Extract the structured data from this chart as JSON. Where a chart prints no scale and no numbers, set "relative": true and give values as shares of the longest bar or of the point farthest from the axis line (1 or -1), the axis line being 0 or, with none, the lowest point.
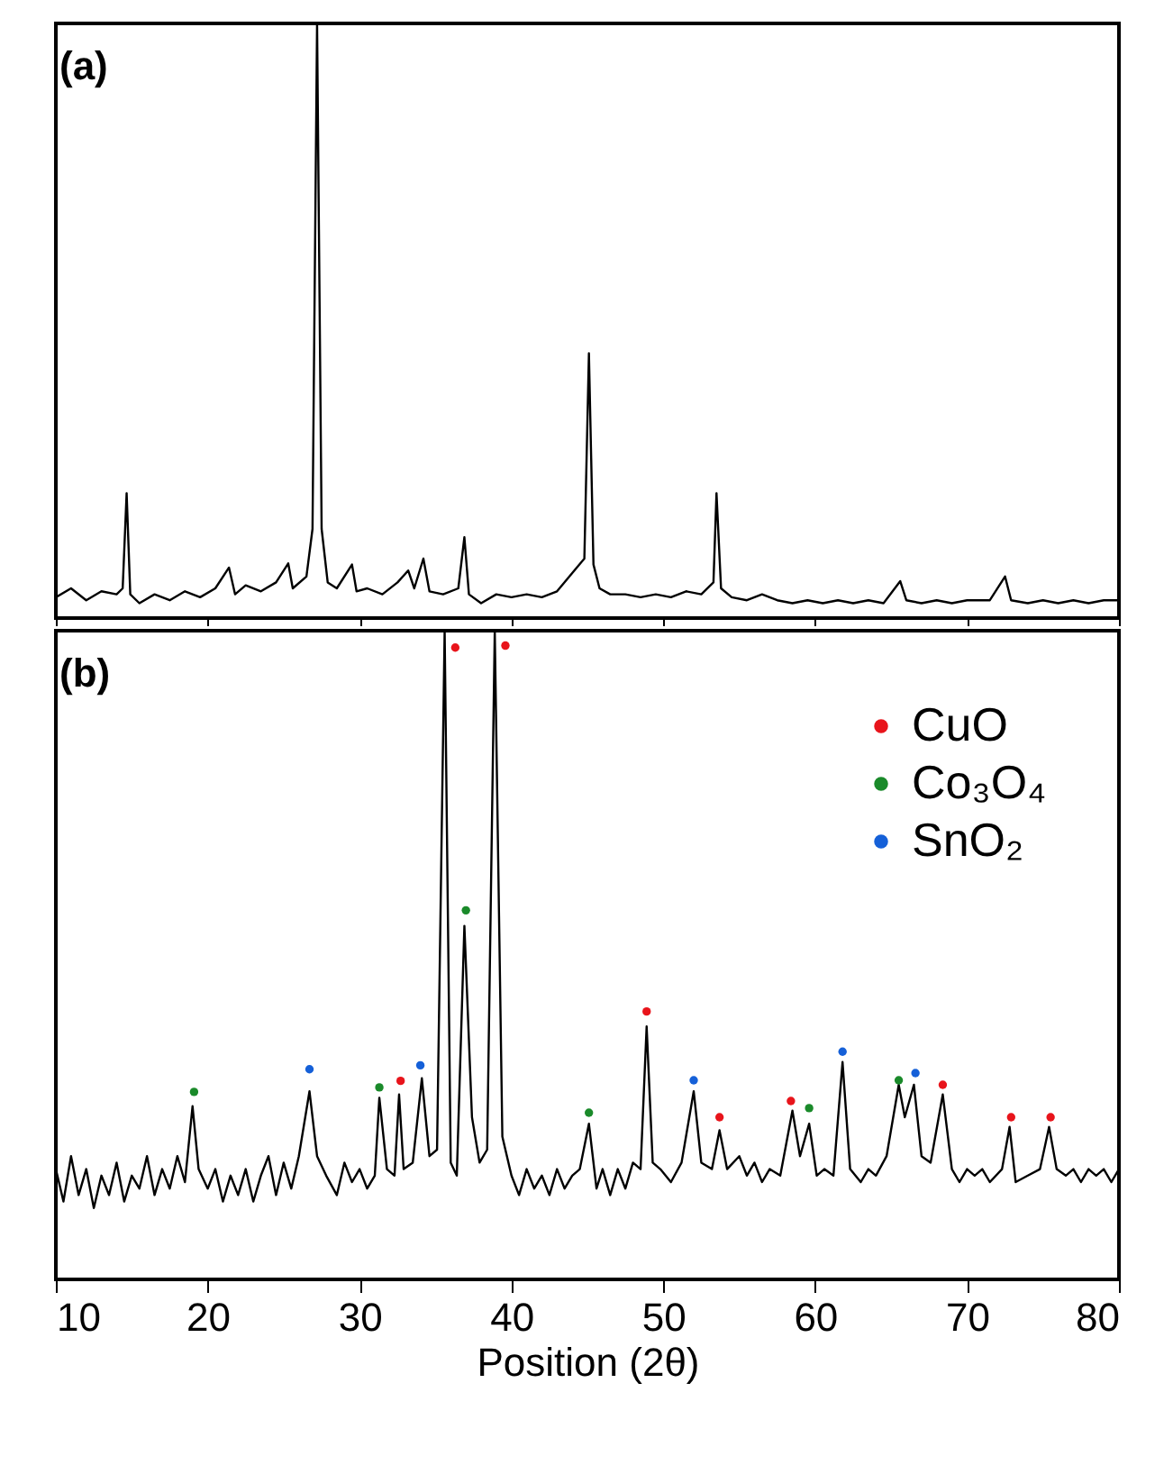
{
  "chart_data": [
    {
      "type": "line",
      "relative": true,
      "annotations": [
        "(a)"
      ],
      "xlim": [
        10,
        80
      ],
      "xticks": [
        10,
        20,
        30,
        40,
        50,
        60,
        70,
        80
      ],
      "tick_labels": false,
      "line_style": "solid",
      "series": [
        {
          "color": "#000000",
          "x": [
            10,
            11,
            12,
            13,
            14,
            14.4,
            14.66,
            14.9,
            15.5,
            16.5,
            17.5,
            18.5,
            19.5,
            20.5,
            21.4,
            21.8,
            22.5,
            23.5,
            24.5,
            25.3,
            25.6,
            26.5,
            26.9,
            27.2,
            27.5,
            27.9,
            28.5,
            29.5,
            29.8,
            30.5,
            31.5,
            32.5,
            33.2,
            33.6,
            34.2,
            34.6,
            35.5,
            36.5,
            36.9,
            37.2,
            38,
            39,
            40,
            41,
            42,
            43,
            44.3,
            44.8,
            45.1,
            45.4,
            45.8,
            46.5,
            47.5,
            48.5,
            49.5,
            50.5,
            51.5,
            52.5,
            53.3,
            53.5,
            53.8,
            54.5,
            55.5,
            56.5,
            57.5,
            58.5,
            59.5,
            60.5,
            61.5,
            62.5,
            63.5,
            64.5,
            65.6,
            66,
            67,
            68,
            69,
            70,
            71.5,
            72.5,
            72.9,
            74,
            75,
            76,
            77,
            78,
            79,
            80
          ],
          "values": [
            0.035,
            0.05,
            0.03,
            0.045,
            0.04,
            0.05,
            0.21,
            0.04,
            0.025,
            0.04,
            0.03,
            0.045,
            0.035,
            0.05,
            0.085,
            0.04,
            0.055,
            0.045,
            0.06,
            0.092,
            0.05,
            0.07,
            0.15,
            1,
            0.15,
            0.06,
            0.05,
            0.09,
            0.045,
            0.05,
            0.04,
            0.06,
            0.08,
            0.05,
            0.1,
            0.045,
            0.04,
            0.05,
            0.136,
            0.04,
            0.025,
            0.04,
            0.035,
            0.04,
            0.035,
            0.045,
            0.085,
            0.1,
            0.445,
            0.09,
            0.05,
            0.04,
            0.04,
            0.035,
            0.04,
            0.035,
            0.045,
            0.04,
            0.06,
            0.21,
            0.05,
            0.035,
            0.03,
            0.04,
            0.03,
            0.025,
            0.03,
            0.025,
            0.03,
            0.025,
            0.03,
            0.025,
            0.062,
            0.03,
            0.025,
            0.03,
            0.025,
            0.03,
            0.03,
            0.07,
            0.03,
            0.025,
            0.03,
            0.025,
            0.03,
            0.025,
            0.03,
            0.03
          ]
        }
      ]
    },
    {
      "type": "line",
      "relative": true,
      "annotations": [
        "(b)"
      ],
      "xlabel": "Position (2θ)",
      "xlim": [
        10,
        80
      ],
      "xticks": [
        10,
        20,
        30,
        40,
        50,
        60,
        70,
        80
      ],
      "tick_labels": "x",
      "line_style": "solid",
      "legend": "top right",
      "series": [
        {
          "color": "#000000",
          "x": [
            10,
            10.5,
            11,
            11.5,
            12,
            12.5,
            13,
            13.5,
            14,
            14.5,
            15,
            15.5,
            16,
            16.5,
            17,
            17.5,
            18,
            18.5,
            19,
            19.4,
            20,
            20.5,
            21,
            21.5,
            22,
            22.5,
            23,
            23.5,
            24,
            24.5,
            25,
            25.5,
            26,
            26.7,
            27.2,
            27.8,
            28.5,
            29,
            29.5,
            30,
            30.5,
            31,
            31.3,
            31.8,
            32.3,
            32.6,
            32.9,
            33.5,
            34.1,
            34.6,
            35.1,
            35.6,
            36.0,
            36.4,
            36.9,
            37.4,
            37.9,
            38.4,
            38.9,
            39.4,
            40,
            40.5,
            41,
            41.5,
            42,
            42.5,
            43,
            43.5,
            44,
            44.5,
            45.1,
            45.6,
            46,
            46.5,
            47,
            47.5,
            48,
            48.5,
            48.9,
            49.3,
            49.8,
            50.5,
            51.2,
            52.0,
            52.5,
            53.2,
            53.7,
            54.2,
            55,
            55.5,
            56,
            56.5,
            57,
            57.7,
            58.5,
            59.0,
            59.6,
            60.1,
            60.6,
            61.2,
            61.8,
            62.3,
            63,
            63.5,
            64,
            64.7,
            65.5,
            65.9,
            66.5,
            67.0,
            67.6,
            68.4,
            69,
            69.5,
            70,
            70.5,
            71,
            71.5,
            72.3,
            72.8,
            73.2,
            74,
            74.8,
            75.4,
            75.9,
            76.5,
            77,
            77.5,
            78,
            78.5,
            79,
            79.5,
            80
          ],
          "values": [
            0.17,
            0.12,
            0.19,
            0.13,
            0.17,
            0.11,
            0.16,
            0.13,
            0.18,
            0.12,
            0.16,
            0.14,
            0.19,
            0.13,
            0.17,
            0.14,
            0.19,
            0.15,
            0.267,
            0.17,
            0.14,
            0.17,
            0.12,
            0.16,
            0.13,
            0.17,
            0.12,
            0.16,
            0.19,
            0.13,
            0.18,
            0.14,
            0.19,
            0.29,
            0.19,
            0.16,
            0.13,
            0.18,
            0.15,
            0.17,
            0.14,
            0.16,
            0.28,
            0.17,
            0.16,
            0.285,
            0.17,
            0.18,
            0.31,
            0.19,
            0.2,
            1,
            0.18,
            0.16,
            0.545,
            0.25,
            0.18,
            0.2,
            1,
            0.22,
            0.16,
            0.13,
            0.17,
            0.14,
            0.16,
            0.13,
            0.17,
            0.14,
            0.16,
            0.17,
            0.24,
            0.14,
            0.17,
            0.13,
            0.17,
            0.14,
            0.18,
            0.17,
            0.39,
            0.18,
            0.17,
            0.15,
            0.18,
            0.29,
            0.18,
            0.17,
            0.23,
            0.17,
            0.19,
            0.16,
            0.18,
            0.15,
            0.17,
            0.16,
            0.26,
            0.19,
            0.24,
            0.16,
            0.17,
            0.16,
            0.335,
            0.17,
            0.15,
            0.17,
            0.16,
            0.19,
            0.3,
            0.25,
            0.3,
            0.19,
            0.18,
            0.285,
            0.17,
            0.15,
            0.17,
            0.16,
            0.17,
            0.15,
            0.17,
            0.235,
            0.15,
            0.16,
            0.17,
            0.235,
            0.17,
            0.16,
            0.17,
            0.15,
            0.17,
            0.16,
            0.17,
            0.15,
            0.17
          ]
        },
        {
          "type": "scatter",
          "marker": "circle",
          "name": "CuO",
          "color": "#e8141b",
          "x": [
            32.7,
            36.3,
            39.6,
            48.9,
            53.7,
            58.4,
            68.4,
            72.9,
            75.5
          ],
          "values": [
            0.306,
            0.974,
            0.977,
            0.413,
            0.25,
            0.275,
            0.3,
            0.25,
            0.25
          ]
        },
        {
          "type": "scatter",
          "marker": "circle",
          "name": "Co₃O₄",
          "color": "#1a8a2a",
          "x": [
            19.1,
            31.3,
            37.0,
            45.1,
            59.6,
            65.5
          ],
          "values": [
            0.289,
            0.296,
            0.569,
            0.257,
            0.264,
            0.307
          ]
        },
        {
          "type": "scatter",
          "marker": "circle",
          "name": "SnO₂",
          "color": "#1560d8",
          "x": [
            26.7,
            34.0,
            52.0,
            61.8,
            66.6
          ],
          "values": [
            0.324,
            0.33,
            0.307,
            0.351,
            0.318
          ]
        }
      ]
    }
  ]
}
